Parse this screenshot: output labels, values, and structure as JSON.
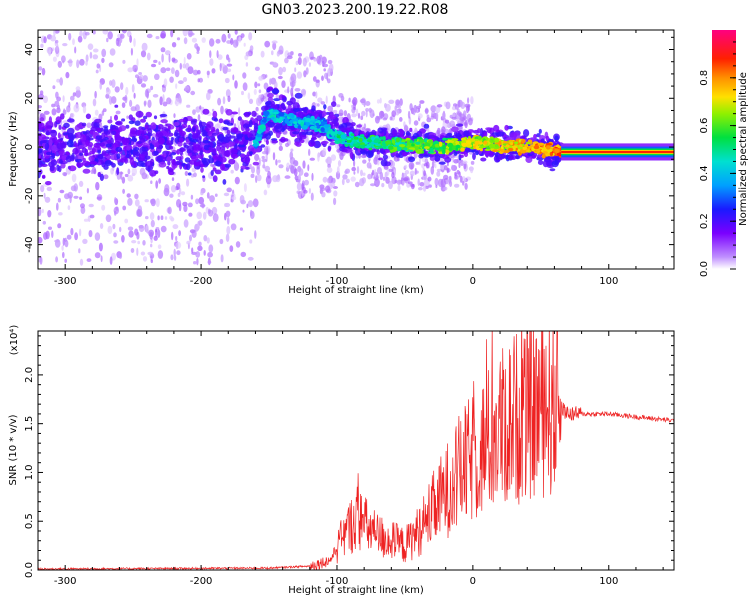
{
  "title": "GN03.2023.200.19.22.R08",
  "chart_data": [
    {
      "type": "heatmap",
      "xlabel": "Height of straight line (km)",
      "ylabel": "Frequency (Hz)",
      "xlim": [
        -320,
        148
      ],
      "ylim": [
        -50,
        48
      ],
      "xticks": [
        -300,
        -200,
        -100,
        0,
        100
      ],
      "yticks": [
        -40,
        -20,
        0,
        20,
        40
      ],
      "colorbar": {
        "label": "Normalized spectral amplitude",
        "range": [
          0,
          1
        ],
        "ticks": [
          0.0,
          0.2,
          0.4,
          0.6,
          0.8
        ]
      },
      "ridge": {
        "x": [
          -320,
          -250,
          -200,
          -160,
          -150,
          -130,
          -110,
          -100,
          -80,
          -60,
          -40,
          -20,
          0,
          20,
          40,
          65,
          148
        ],
        "y": [
          0,
          1,
          0,
          2,
          14,
          10,
          9,
          4,
          2,
          1,
          0.5,
          0.5,
          2,
          1,
          0,
          -2,
          -2
        ]
      },
      "grid": false
    },
    {
      "type": "line",
      "xlabel": "Height of straight line (km)",
      "ylabel": "SNR (10 * v/v)",
      "yscale_note": "(x10⁴)",
      "xlim": [
        -320,
        148
      ],
      "ylim": [
        0,
        2.45
      ],
      "xticks": [
        -300,
        -200,
        -100,
        0,
        100
      ],
      "yticks": [
        0.0,
        0.5,
        1.0,
        1.5,
        2.0
      ],
      "series": [
        {
          "color": "#ee2222",
          "envelope": {
            "x": [
              -320,
              -150,
              -120,
              -105,
              -95,
              -85,
              -75,
              -70,
              -60,
              -50,
              -40,
              -30,
              -20,
              -10,
              0,
              10,
              20,
              30,
              40,
              50,
              60,
              70,
              80,
              100,
              120,
              148
            ],
            "y": [
              0.01,
              0.02,
              0.04,
              0.1,
              0.35,
              0.55,
              0.4,
              0.35,
              0.3,
              0.25,
              0.4,
              0.6,
              0.8,
              1.0,
              1.15,
              1.3,
              1.45,
              1.55,
              1.65,
              1.7,
              1.72,
              1.6,
              1.6,
              1.6,
              1.57,
              1.53
            ]
          }
        }
      ],
      "grid": false
    }
  ]
}
